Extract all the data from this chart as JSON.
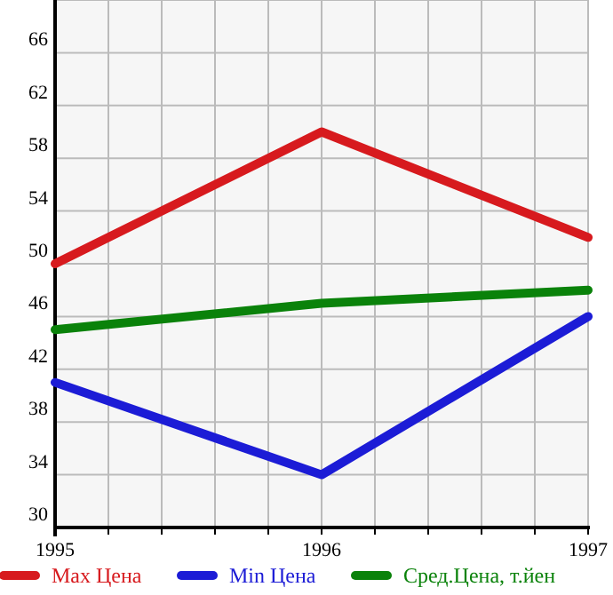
{
  "chart_data": {
    "type": "line",
    "x": [
      1995,
      1996,
      1997
    ],
    "series": [
      {
        "name": "Max Цена",
        "color": "#d71a1e",
        "values": [
          50,
          60,
          52
        ]
      },
      {
        "name": "Min Цена",
        "color": "#1c1cd6",
        "values": [
          41,
          34,
          46
        ]
      },
      {
        "name": "Сред.Цена, т.йен",
        "color": "#0a820a",
        "values": [
          45,
          47,
          48
        ]
      }
    ],
    "xlim": [
      1995,
      1997
    ],
    "xticks": [
      1995,
      {
        "value": 1995.2,
        "label": null
      },
      {
        "value": 1995.4,
        "label": null
      },
      {
        "value": 1995.6,
        "label": null
      },
      {
        "value": 1995.8,
        "label": null
      },
      1996,
      {
        "value": 1996.2,
        "label": null
      },
      {
        "value": 1996.4,
        "label": null
      },
      {
        "value": 1996.6,
        "label": null
      },
      {
        "value": 1996.8,
        "label": null
      },
      1997
    ],
    "ylim": [
      30,
      70
    ],
    "yticks": [
      30,
      34,
      38,
      42,
      46,
      50,
      54,
      58,
      62,
      66
    ],
    "grid": true,
    "legend": "bottom",
    "marker": "none",
    "line_style": "solid"
  }
}
